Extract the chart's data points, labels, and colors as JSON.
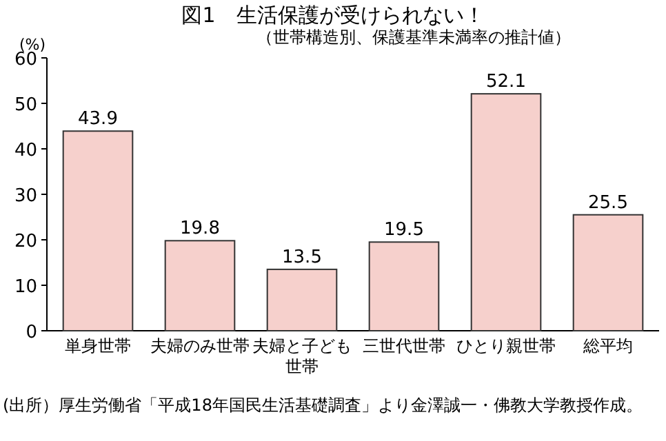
{
  "chart_data": {
    "type": "bar",
    "title": "図1　生活保護が受けられない！",
    "subtitle": "（世帯構造別、保護基準未満率の推計値）",
    "ylabel": "(%)",
    "categories": [
      "単身世帯",
      "夫婦のみ世帯",
      "夫婦と子ども世帯",
      "三世代世帯",
      "ひとり親世帯",
      "総平均"
    ],
    "values": [
      43.9,
      19.8,
      13.5,
      19.5,
      52.1,
      25.5
    ],
    "color": "#f6d0cc",
    "ylim": [
      0,
      60
    ],
    "yticks": [
      0,
      10,
      20,
      30,
      40,
      50,
      60
    ],
    "data_labels": true,
    "grid": false,
    "annotations": [
      "(出所）厚生労働省「平成18年国民生活基礎調査」より金澤誠一・佛教大学教授作成。"
    ]
  }
}
